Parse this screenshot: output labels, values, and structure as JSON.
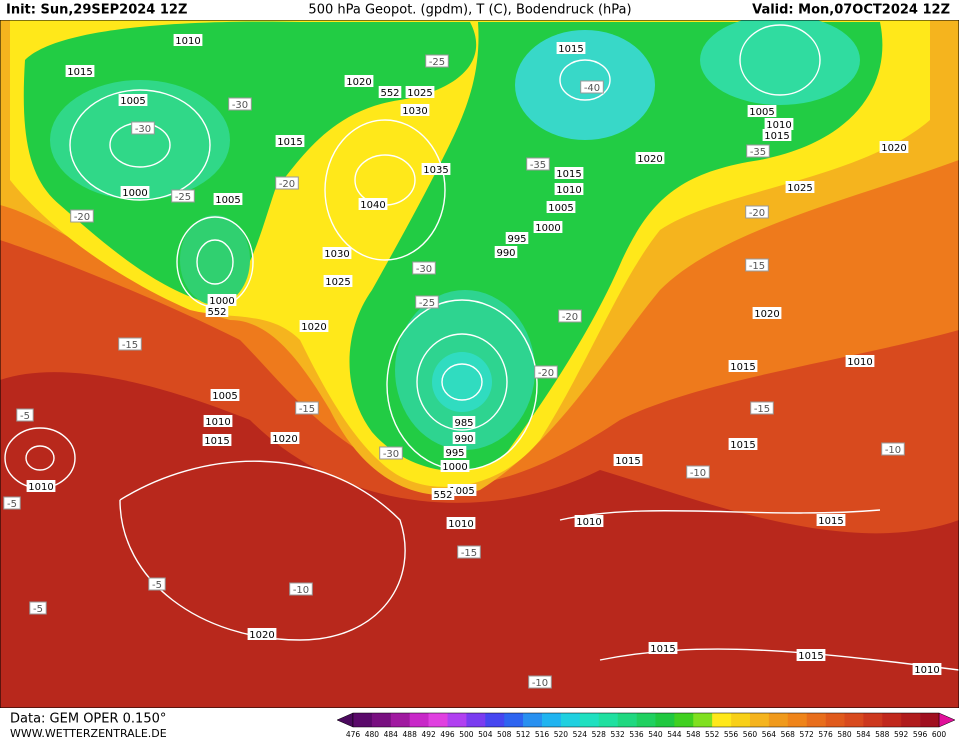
{
  "header": {
    "init": "Init: Sun,29SEP2024 12Z",
    "title": "500 hPa Geopot. (gpdm), T (C), Bodendruck (hPa)",
    "valid": "Valid: Mon,07OCT2024 12Z"
  },
  "footer": {
    "data": "Data: GEM OPER 0.150°",
    "site": "WWW.WETTERZENTRALE.DE"
  },
  "isobar_labels": [
    "1010",
    "1015",
    "1005",
    "1000",
    "1005",
    "1000",
    "552",
    "1020",
    "552",
    "1025",
    "1030",
    "1015",
    "1035",
    "1040",
    "1030",
    "1025",
    "1020",
    "1005",
    "1010",
    "1015",
    "1020",
    "1010",
    "1015",
    "1005",
    "1010",
    "1015",
    "1020",
    "1015",
    "1010",
    "1005",
    "1000",
    "995",
    "990",
    "1020",
    "1025",
    "1020",
    "1015",
    "1010",
    "1015",
    "1015",
    "985",
    "990",
    "995",
    "1000",
    "1005",
    "552",
    "1010",
    "1010",
    "1015",
    "1020",
    "1015",
    "1015",
    "1010"
  ],
  "temperature_labels": [
    "-25",
    "-30",
    "-40",
    "-30",
    "-25",
    "-20",
    "-20",
    "-35",
    "-35",
    "-20",
    "-15",
    "-30",
    "-25",
    "-20",
    "-15",
    "-20",
    "-15",
    "-15",
    "-30",
    "-10",
    "-10",
    "-5",
    "-5",
    "-15",
    "-10",
    "-5",
    "-5",
    "-10"
  ],
  "colorbar": {
    "ticks": [
      476,
      480,
      484,
      488,
      492,
      496,
      500,
      504,
      508,
      512,
      516,
      520,
      524,
      528,
      532,
      536,
      540,
      544,
      548,
      552,
      556,
      560,
      564,
      568,
      572,
      576,
      580,
      584,
      588,
      592,
      596,
      600
    ],
    "colors": [
      "#4b0a5e",
      "#5a0a6a",
      "#781080",
      "#a01aa0",
      "#c828c8",
      "#e040e0",
      "#b040f0",
      "#7a3cf0",
      "#4646f0",
      "#2e64f0",
      "#2890f0",
      "#20b4f0",
      "#20d0e0",
      "#20e0c0",
      "#20e0a0",
      "#20d880",
      "#20d060",
      "#20c840",
      "#40d020",
      "#80e020",
      "#ffe81a",
      "#f8d018",
      "#f5b41e",
      "#f09a1c",
      "#ef841a",
      "#e86e1c",
      "#e05a1c",
      "#d84a1e",
      "#cc381e",
      "#c0281c",
      "#b01c1c",
      "#a01020",
      "#e0109a"
    ]
  }
}
